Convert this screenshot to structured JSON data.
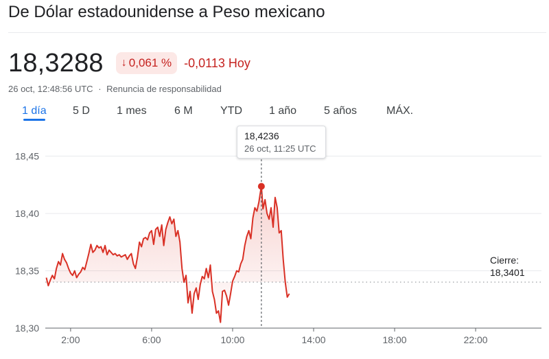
{
  "header": {
    "title": "De Dólar estadounidense a Peso mexicano",
    "price": "18,3288",
    "change_pct": "0,061 %",
    "change_arrow_icon": "arrow-down-icon",
    "change_abs": "-0,0113 Hoy",
    "timestamp": "26 oct, 12:48:56 UTC",
    "separator": "·",
    "disclaimer": "Renuncia de responsabilidad"
  },
  "tabs": [
    {
      "label": "1 día",
      "active": true
    },
    {
      "label": "5 D",
      "active": false
    },
    {
      "label": "1 mes",
      "active": false
    },
    {
      "label": "6 M",
      "active": false
    },
    {
      "label": "YTD",
      "active": false
    },
    {
      "label": "1 año",
      "active": false
    },
    {
      "label": "5 años",
      "active": false
    },
    {
      "label": "MÁX.",
      "active": false
    }
  ],
  "tooltip": {
    "value": "18,4236",
    "time": "26 oct, 11:25 UTC"
  },
  "close_label": {
    "label": "Cierre:",
    "value": "18,3401"
  },
  "colors": {
    "line": "#d93025",
    "negative": "#c5221f",
    "badge_bg": "#fce8e6",
    "accent": "#1a73e8"
  },
  "chart_data": {
    "type": "line",
    "ylim": [
      18.3,
      18.47
    ],
    "xlim": [
      0.75,
      25.25
    ],
    "yticks": [
      18.3,
      18.35,
      18.4,
      18.45
    ],
    "ytick_labels": [
      "18,30",
      "18,35",
      "18,40",
      "18,45"
    ],
    "xticks": [
      2,
      6,
      10,
      14,
      18,
      22
    ],
    "xtick_labels": [
      "2:00",
      "6:00",
      "10:00",
      "14:00",
      "18:00",
      "22:00"
    ],
    "previous_close": 18.3401,
    "highlight": {
      "x": 11.42,
      "y": 18.4236
    },
    "grid": "horizontal",
    "x": [
      0.8,
      0.9,
      1.0,
      1.1,
      1.2,
      1.3,
      1.4,
      1.5,
      1.6,
      1.7,
      1.8,
      1.9,
      2.0,
      2.1,
      2.2,
      2.3,
      2.4,
      2.5,
      2.6,
      2.7,
      2.8,
      2.9,
      3.0,
      3.1,
      3.2,
      3.3,
      3.4,
      3.5,
      3.6,
      3.7,
      3.8,
      3.9,
      4.0,
      4.1,
      4.2,
      4.3,
      4.4,
      4.5,
      4.6,
      4.7,
      4.8,
      4.9,
      5.0,
      5.1,
      5.2,
      5.3,
      5.4,
      5.5,
      5.6,
      5.7,
      5.8,
      5.9,
      6.0,
      6.1,
      6.2,
      6.3,
      6.4,
      6.5,
      6.6,
      6.7,
      6.8,
      6.9,
      7.0,
      7.1,
      7.2,
      7.3,
      7.4,
      7.5,
      7.6,
      7.7,
      7.8,
      7.9,
      8.0,
      8.1,
      8.2,
      8.3,
      8.4,
      8.5,
      8.6,
      8.7,
      8.8,
      8.9,
      9.0,
      9.1,
      9.2,
      9.3,
      9.4,
      9.5,
      9.6,
      9.7,
      9.8,
      9.9,
      10.0,
      10.1,
      10.2,
      10.3,
      10.4,
      10.5,
      10.6,
      10.7,
      10.8,
      10.9,
      11.0,
      11.1,
      11.2,
      11.3,
      11.42,
      11.5,
      11.6,
      11.7,
      11.8,
      11.9,
      12.0,
      12.1,
      12.2,
      12.3,
      12.4,
      12.5,
      12.6,
      12.7,
      12.8
    ],
    "y": [
      18.344,
      18.337,
      18.342,
      18.346,
      18.343,
      18.352,
      18.358,
      18.355,
      18.365,
      18.36,
      18.357,
      18.352,
      18.348,
      18.346,
      18.35,
      18.344,
      18.347,
      18.349,
      18.353,
      18.351,
      18.358,
      18.365,
      18.373,
      18.366,
      18.368,
      18.372,
      18.37,
      18.371,
      18.366,
      18.372,
      18.364,
      18.368,
      18.366,
      18.364,
      18.365,
      18.363,
      18.364,
      18.362,
      18.363,
      18.364,
      18.36,
      18.363,
      18.365,
      18.356,
      18.352,
      18.362,
      18.375,
      18.371,
      18.378,
      18.379,
      18.377,
      18.383,
      18.385,
      18.373,
      18.386,
      18.388,
      18.38,
      18.39,
      18.372,
      18.386,
      18.392,
      18.397,
      18.391,
      18.395,
      18.38,
      18.385,
      18.375,
      18.352,
      18.34,
      18.346,
      18.322,
      18.332,
      18.313,
      18.33,
      18.335,
      18.325,
      18.338,
      18.345,
      18.343,
      18.352,
      18.344,
      18.355,
      18.332,
      18.325,
      18.313,
      18.315,
      18.305,
      18.332,
      18.333,
      18.328,
      18.32,
      18.33,
      18.341,
      18.345,
      18.35,
      18.349,
      18.356,
      18.36,
      18.372,
      18.38,
      18.385,
      18.378,
      18.396,
      18.405,
      18.402,
      18.41,
      18.424,
      18.404,
      18.412,
      18.4,
      18.395,
      18.405,
      18.388,
      18.414,
      18.405,
      18.383,
      18.385,
      18.36,
      18.34,
      18.327,
      18.33
    ]
  }
}
